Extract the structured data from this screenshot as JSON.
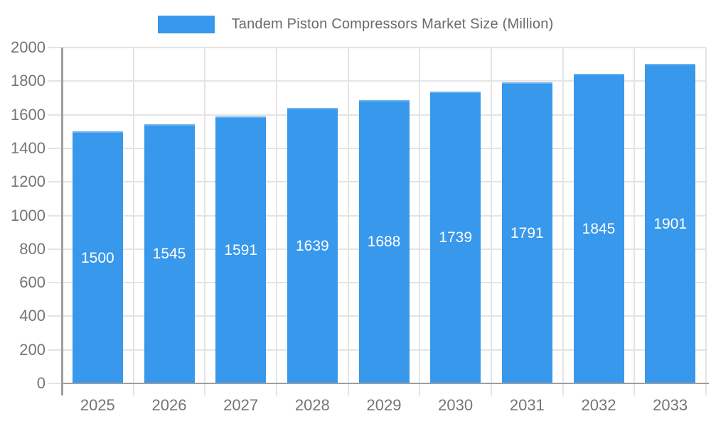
{
  "chart_data": {
    "type": "bar",
    "title": "Tandem Piston Compressors Market Size (Million)",
    "categories": [
      "2025",
      "2026",
      "2027",
      "2028",
      "2029",
      "2030",
      "2031",
      "2032",
      "2033"
    ],
    "values": [
      1500,
      1545,
      1591,
      1639,
      1688,
      1739,
      1791,
      1845,
      1901
    ],
    "xlabel": "",
    "ylabel": "",
    "ylim": [
      0,
      2000
    ],
    "ytick_step": 200,
    "grid": true,
    "legend_position": "top",
    "bar_color": "#3898EC",
    "bar_label_color": "#ffffff",
    "axis_line_color": "#9e9e9e",
    "gridline_color": "#e4e4e4",
    "tick_text_color": "#757575",
    "legend_text_color": "#6b6b6b",
    "background_color": "#ffffff"
  }
}
